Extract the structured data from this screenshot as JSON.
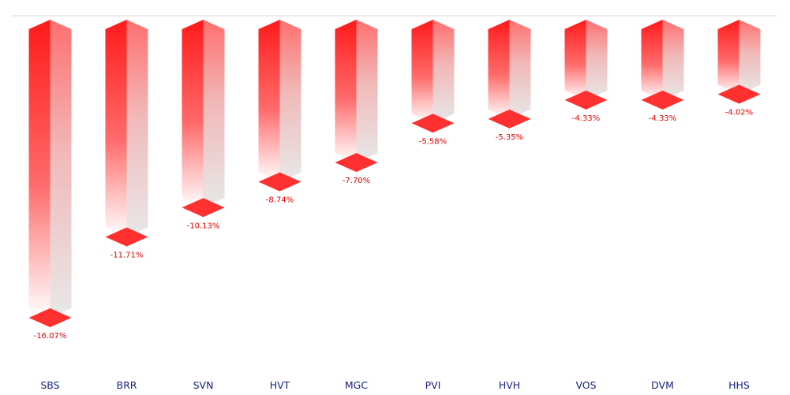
{
  "chart_data": {
    "type": "bar",
    "categories": [
      "SBS",
      "BRR",
      "SVN",
      "HVT",
      "MGC",
      "PVI",
      "HVH",
      "VOS",
      "DVM",
      "HHS"
    ],
    "values": [
      -16.07,
      -11.71,
      -10.13,
      -8.74,
      -7.7,
      -5.58,
      -5.35,
      -4.33,
      -4.33,
      -4.02
    ],
    "value_labels": [
      "-16.07%",
      "-11.71%",
      "-10.13%",
      "-8.74%",
      "-7.70%",
      "-5.58%",
      "-5.35%",
      "-4.33%",
      "-4.33%",
      "-4.02%"
    ],
    "title": "",
    "xlabel": "",
    "ylabel": "",
    "ylim": [
      -16.07,
      0
    ],
    "grid": false,
    "legend": "none",
    "colors": {
      "bar": "#ff1a1a",
      "bar_fade": "#e8e8e8",
      "value_label": "#e00000",
      "category_label": "#1a237e",
      "axis_line": "#d9d9d9"
    }
  }
}
